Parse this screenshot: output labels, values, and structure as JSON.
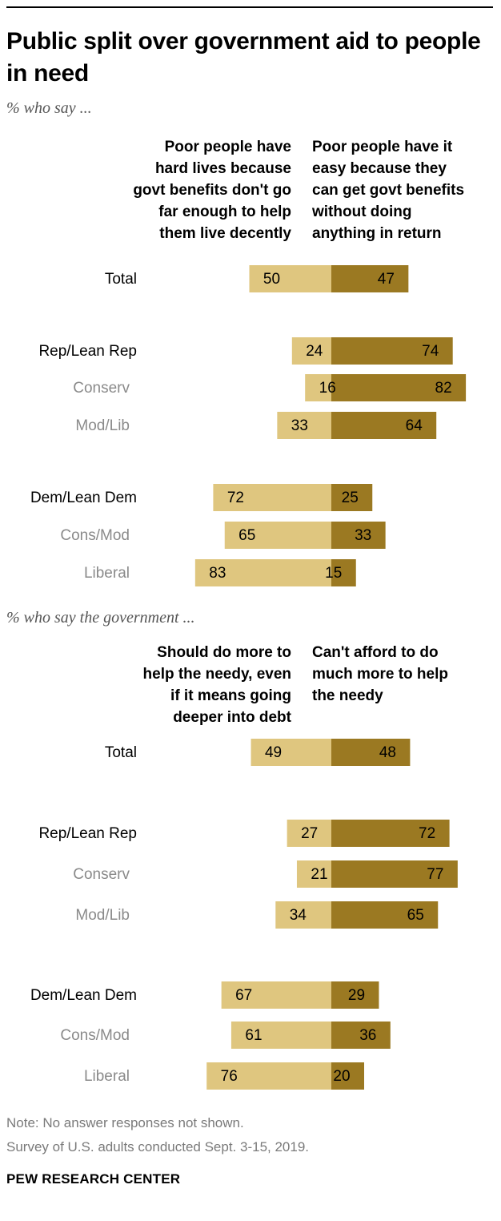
{
  "title": "Public split over government aid to people in need",
  "colors": {
    "light": "#dfc67f",
    "dark": "#9b7922",
    "sub_label": "#8a8a8a"
  },
  "chart_data": [
    {
      "type": "bar",
      "subtitle": "% who say ...",
      "series": [
        {
          "name": "Poor people have hard lives because govt benefits don't go far enough to help them live decently",
          "values": [
            50,
            24,
            16,
            33,
            72,
            65,
            83
          ]
        },
        {
          "name": "Poor people have it easy because they can get govt benefits without doing anything in return",
          "values": [
            47,
            74,
            82,
            64,
            25,
            33,
            15
          ]
        }
      ],
      "categories": [
        "Total",
        "Rep/Lean Rep",
        "Conserv",
        "Mod/Lib",
        "Dem/Lean Dem",
        "Cons/Mod",
        "Liberal"
      ],
      "sub_category": [
        false,
        false,
        true,
        true,
        false,
        true,
        true
      ]
    },
    {
      "type": "bar",
      "subtitle": "% who say the government ...",
      "series": [
        {
          "name": "Should do more to help the needy, even if it means going deeper into debt",
          "values": [
            49,
            27,
            21,
            34,
            67,
            61,
            76
          ]
        },
        {
          "name": "Can't afford to do much more to help the needy",
          "values": [
            48,
            72,
            77,
            65,
            29,
            36,
            20
          ]
        }
      ],
      "categories": [
        "Total",
        "Rep/Lean Rep",
        "Conserv",
        "Mod/Lib",
        "Dem/Lean Dem",
        "Cons/Mod",
        "Liberal"
      ],
      "sub_category": [
        false,
        false,
        true,
        true,
        false,
        true,
        true
      ]
    }
  ],
  "headings": [
    {
      "left": "Poor people have\nhard lives because\ngovt benefits don't go\nfar enough to help\nthem live decently",
      "right": "Poor people have it\neasy because they\ncan get govt benefits\nwithout doing\nanything in return"
    },
    {
      "left": "Should do more to\nhelp the needy, even\nif it means going\ndeeper into debt",
      "right": "Can't afford to do\nmuch more to help\nthe needy"
    }
  ],
  "note": "Note: No answer responses not shown.",
  "source": "Survey of U.S. adults conducted Sept. 3-15, 2019.",
  "brand": "PEW RESEARCH CENTER"
}
